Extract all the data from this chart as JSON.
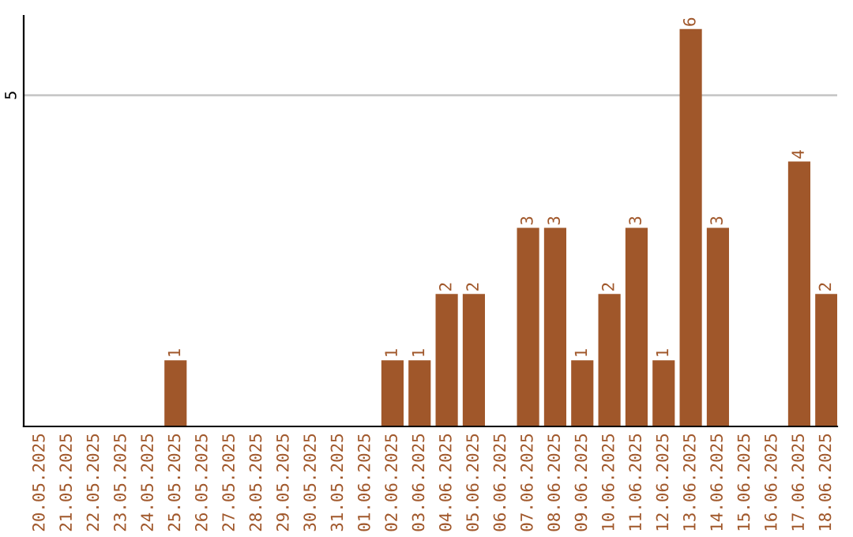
{
  "chart_data": {
    "type": "bar",
    "categories": [
      "20.05.2025",
      "21.05.2025",
      "22.05.2025",
      "23.05.2025",
      "24.05.2025",
      "25.05.2025",
      "26.05.2025",
      "27.05.2025",
      "28.05.2025",
      "29.05.2025",
      "30.05.2025",
      "31.05.2025",
      "01.06.2025",
      "02.06.2025",
      "03.06.2025",
      "04.06.2025",
      "05.06.2025",
      "06.06.2025",
      "07.06.2025",
      "08.06.2025",
      "09.06.2025",
      "10.06.2025",
      "11.06.2025",
      "12.06.2025",
      "13.06.2025",
      "14.06.2025",
      "15.06.2025",
      "16.06.2025",
      "17.06.2025",
      "18.06.2025"
    ],
    "values": [
      0,
      0,
      0,
      0,
      0,
      1,
      0,
      0,
      0,
      0,
      0,
      0,
      0,
      1,
      1,
      2,
      2,
      0,
      3,
      3,
      1,
      2,
      3,
      1,
      6,
      3,
      0,
      0,
      4,
      2
    ],
    "value_labels": [
      null,
      null,
      null,
      null,
      null,
      "1",
      null,
      null,
      null,
      null,
      null,
      null,
      null,
      "1",
      "1",
      "2",
      "2",
      null,
      "3",
      "3",
      "1",
      "2",
      "3",
      "1",
      "6",
      "3",
      null,
      null,
      "4",
      "2"
    ],
    "color": "#a0572a",
    "ylim": [
      0,
      6.2
    ],
    "yticks": [
      5
    ],
    "grid": "y",
    "legend": false
  }
}
